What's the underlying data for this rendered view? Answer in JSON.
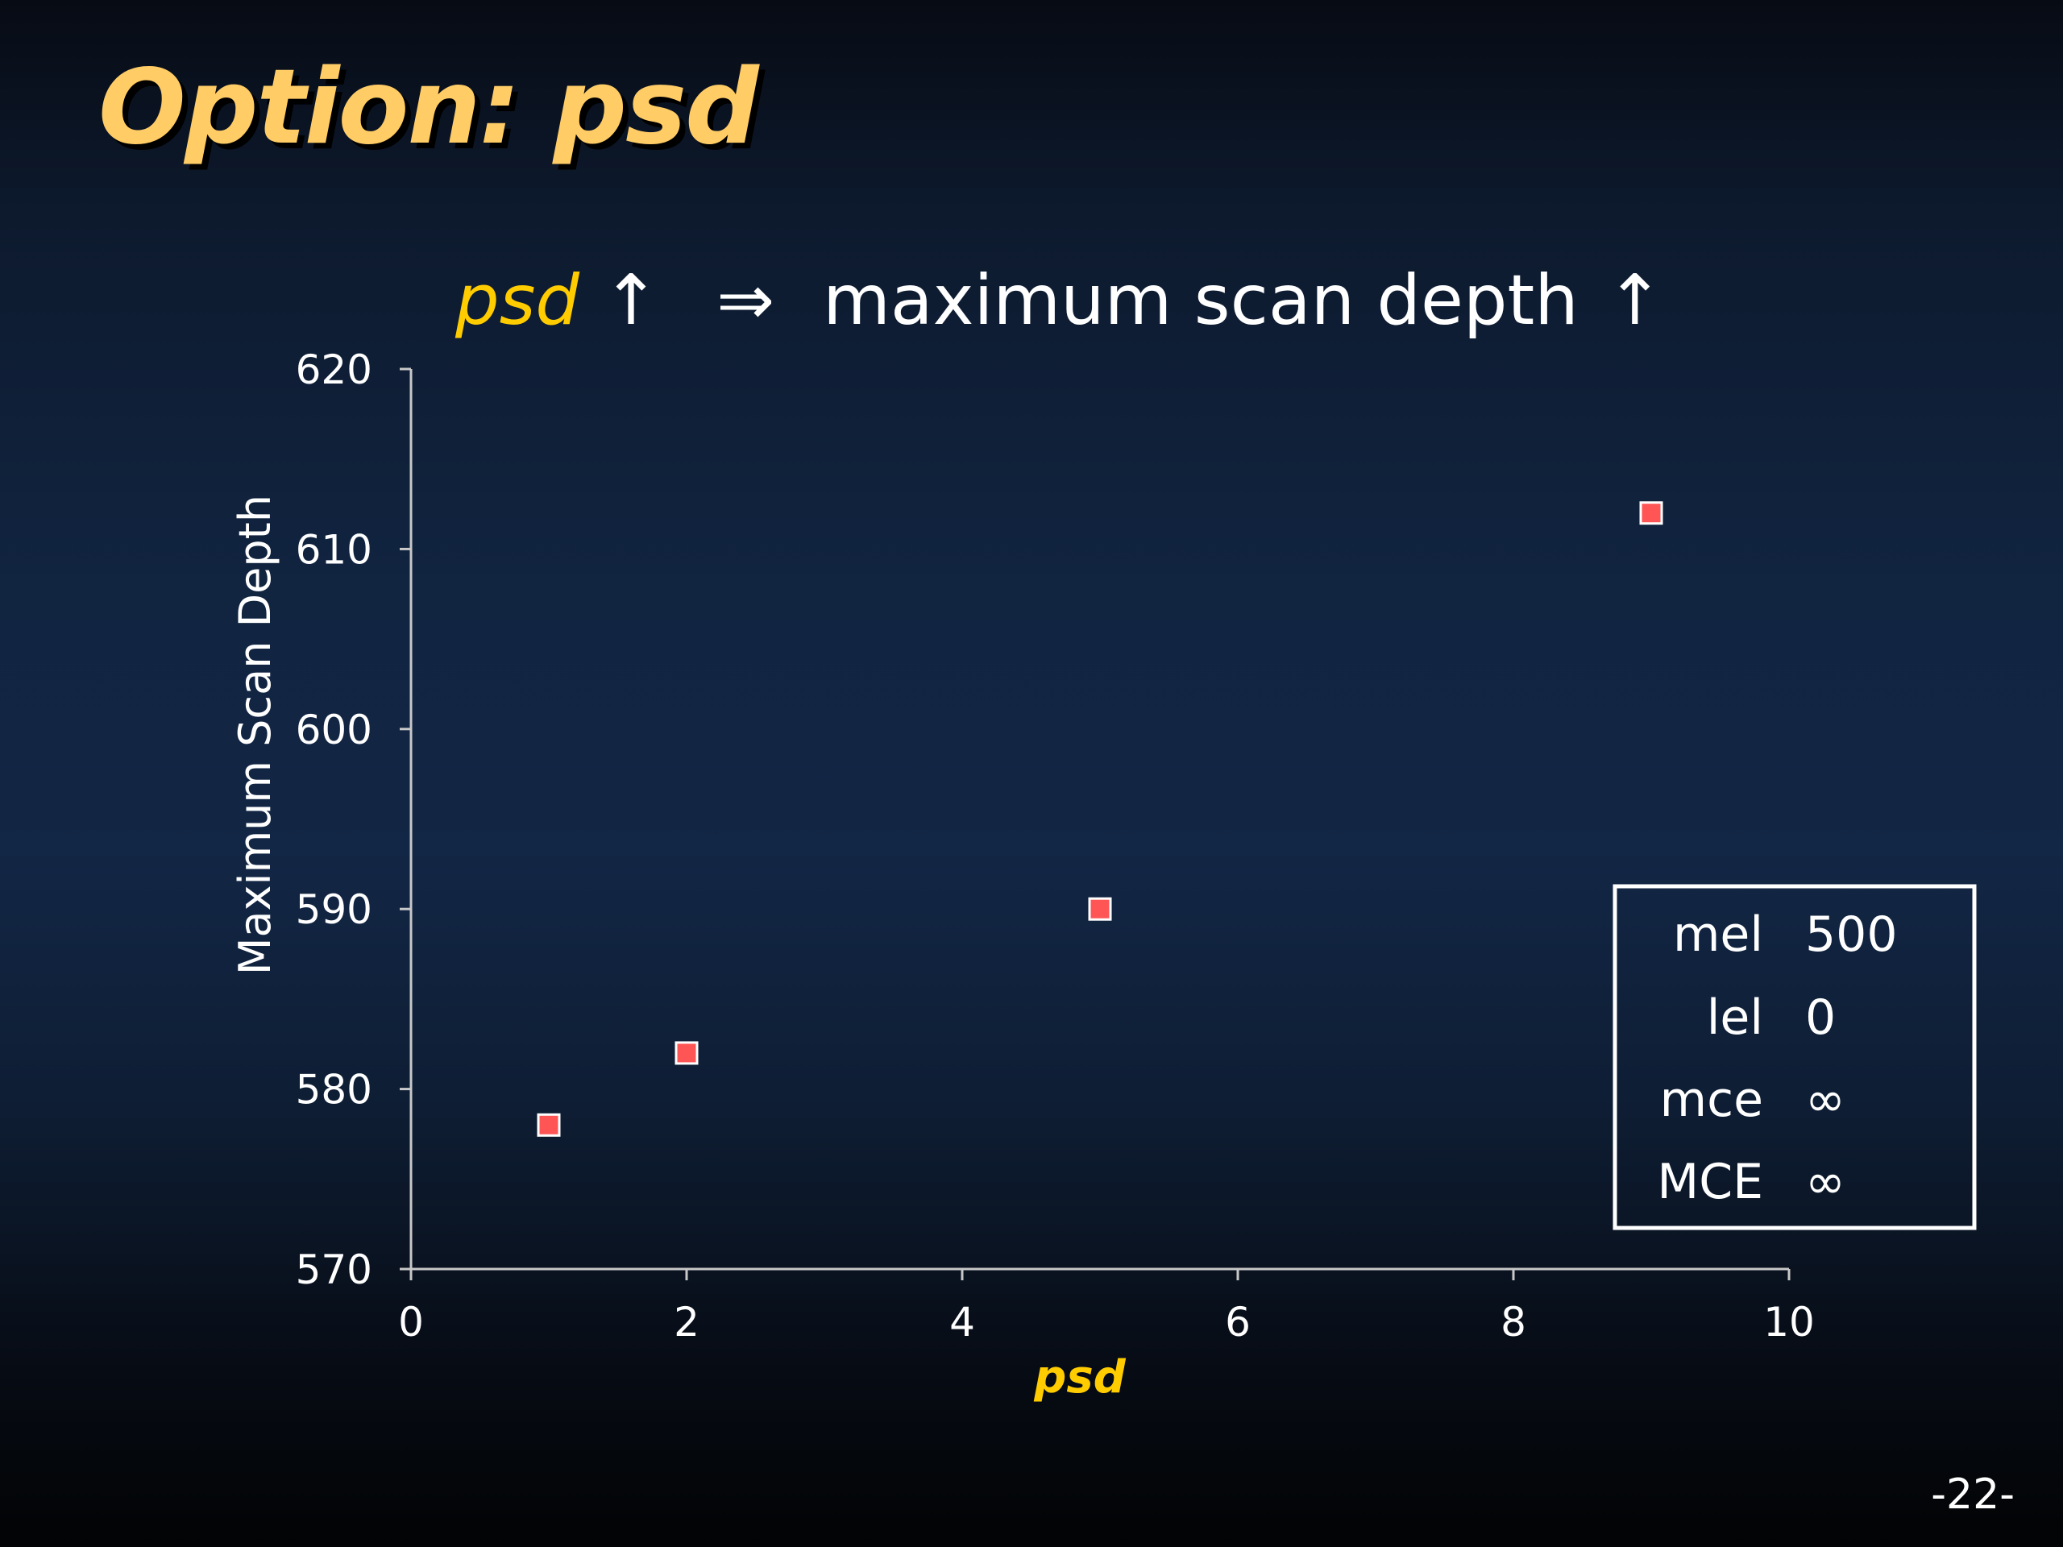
{
  "slide": {
    "title": "Option:  psd",
    "subtitle": {
      "variable": "psd",
      "up_arrow": "↑",
      "implies": "⇒",
      "result": "maximum scan depth",
      "result_arrow": "↑"
    },
    "page_number": "-22-"
  },
  "colors": {
    "title": "#ffcc66",
    "accent": "#ffcc00",
    "marker": "#ff5555",
    "axis": "#c8c8c8"
  },
  "chart_data": {
    "type": "scatter",
    "xlabel": "psd",
    "ylabel": "Maximum Scan Depth",
    "xlim": [
      0,
      10
    ],
    "ylim": [
      570,
      620
    ],
    "x_ticks": [
      0,
      2,
      4,
      6,
      8,
      10
    ],
    "y_ticks": [
      570,
      580,
      590,
      600,
      610,
      620
    ],
    "x_tick_labels": [
      "0",
      "2",
      "4",
      "6",
      "8",
      "10"
    ],
    "y_tick_labels": [
      "570",
      "580",
      "590",
      "600",
      "610",
      "620"
    ],
    "grid": false,
    "points": [
      {
        "x": 1,
        "y": 578
      },
      {
        "x": 2,
        "y": 582
      },
      {
        "x": 5,
        "y": 590
      },
      {
        "x": 9,
        "y": 612
      }
    ],
    "legend_placement": "bottom-right",
    "parameter_box": [
      {
        "name": "mel",
        "value": "500"
      },
      {
        "name": "lel",
        "value": "0"
      },
      {
        "name": "mce",
        "value": "∞"
      },
      {
        "name": "MCE",
        "value": "∞"
      }
    ]
  }
}
